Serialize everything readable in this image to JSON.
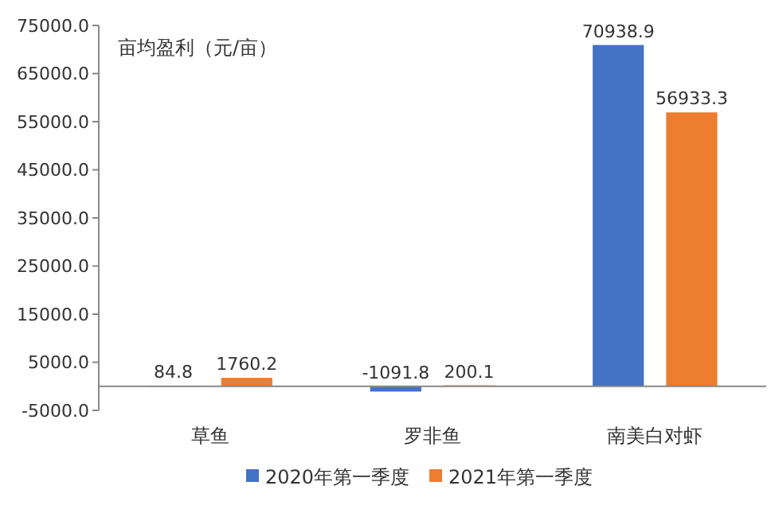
{
  "chart_data": {
    "type": "bar",
    "ylabel": "亩均盈利（元/亩）",
    "categories": [
      "草鱼",
      "罗非鱼",
      "南美白对虾"
    ],
    "series": [
      {
        "name": "2020年第一季度",
        "color": "#4472c4",
        "values": [
          84.8,
          -1091.8,
          70938.9
        ]
      },
      {
        "name": "2021年第一季度",
        "color": "#ed7d31",
        "values": [
          1760.2,
          200.1,
          56933.3
        ]
      }
    ],
    "ylim": [
      -5000,
      75000
    ],
    "yticks": [
      {
        "value": -5000,
        "label": "-5000.0"
      },
      {
        "value": 5000,
        "label": "5000.0"
      },
      {
        "value": 15000,
        "label": "15000.0"
      },
      {
        "value": 25000,
        "label": "25000.0"
      },
      {
        "value": 35000,
        "label": "35000.0"
      },
      {
        "value": 45000,
        "label": "45000.0"
      },
      {
        "value": 55000,
        "label": "55000.0"
      },
      {
        "value": 65000,
        "label": "65000.0"
      },
      {
        "value": 75000,
        "label": "75000.0"
      }
    ],
    "data_labels": true,
    "legend": "bottom",
    "grid": false
  }
}
